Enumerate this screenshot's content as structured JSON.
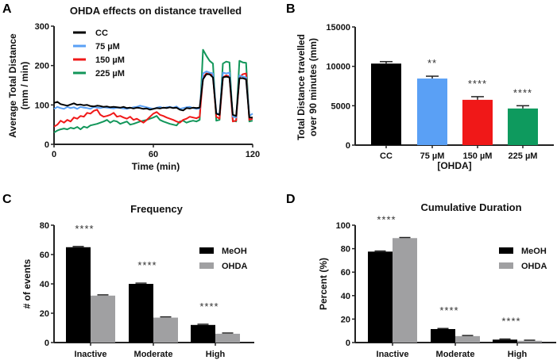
{
  "chart_data": [
    {
      "panel": "A",
      "type": "line",
      "title": "OHDA effects on distance travelled",
      "xlabel": "Time (min)",
      "ylabel": [
        "Average Total Distance",
        "(mm / min)"
      ],
      "xlim": [
        0,
        120
      ],
      "ylim": [
        0,
        300
      ],
      "xticks": [
        0,
        60,
        120
      ],
      "yticks": [
        0,
        100,
        200,
        300
      ],
      "legend_position": "top-left",
      "x": [
        0,
        2,
        4,
        6,
        8,
        10,
        12,
        14,
        16,
        18,
        20,
        22,
        24,
        26,
        28,
        30,
        32,
        34,
        36,
        38,
        40,
        42,
        44,
        46,
        48,
        50,
        52,
        54,
        56,
        58,
        60,
        62,
        64,
        66,
        68,
        70,
        72,
        74,
        76,
        78,
        80,
        82,
        84,
        86,
        88,
        90,
        92,
        94,
        96,
        98,
        100,
        102,
        104,
        106,
        108,
        110,
        112,
        114,
        116,
        118,
        120
      ],
      "series": [
        {
          "name": "CC",
          "color": "#000000",
          "values": [
            105,
            108,
            102,
            100,
            98,
            101,
            104,
            100,
            101,
            99,
            100,
            97,
            96,
            98,
            97,
            95,
            96,
            94,
            95,
            94,
            93,
            95,
            92,
            93,
            91,
            93,
            92,
            90,
            91,
            88,
            90,
            92,
            91,
            93,
            92,
            94,
            92,
            93,
            88,
            86,
            92,
            91,
            93,
            92,
            93,
            165,
            178,
            178,
            170,
            78,
            75,
            170,
            172,
            170,
            75,
            72,
            168,
            168,
            165,
            68,
            68
          ]
        },
        {
          "name": "75 µM",
          "color": "#5aa0f5",
          "values": [
            90,
            95,
            92,
            90,
            95,
            92,
            94,
            90,
            95,
            93,
            92,
            90,
            95,
            93,
            92,
            94,
            93,
            92,
            91,
            93,
            92,
            91,
            90,
            92,
            94,
            95,
            98,
            96,
            94,
            92,
            90,
            93,
            95,
            92,
            94,
            95,
            93,
            96,
            90,
            92,
            94,
            95,
            92,
            90,
            91,
            180,
            185,
            182,
            180,
            80,
            76,
            182,
            180,
            182,
            70,
            68,
            175,
            172,
            170,
            72,
            78
          ]
        },
        {
          "name": "150 µM",
          "color": "#f01818",
          "values": [
            45,
            50,
            60,
            55,
            62,
            58,
            68,
            65,
            72,
            70,
            80,
            78,
            85,
            88,
            75,
            70,
            72,
            75,
            80,
            70,
            72,
            68,
            65,
            70,
            62,
            65,
            60,
            55,
            62,
            70,
            78,
            82,
            75,
            72,
            68,
            65,
            62,
            58,
            55,
            62,
            65,
            70,
            68,
            66,
            70,
            170,
            180,
            178,
            175,
            70,
            65,
            170,
            175,
            172,
            58,
            60,
            170,
            178,
            180,
            62,
            65
          ]
        },
        {
          "name": "225 µM",
          "color": "#12965a",
          "values": [
            30,
            35,
            38,
            40,
            38,
            42,
            40,
            44,
            38,
            45,
            42,
            48,
            50,
            52,
            55,
            58,
            62,
            55,
            60,
            58,
            52,
            55,
            58,
            50,
            52,
            55,
            58,
            60,
            62,
            65,
            68,
            72,
            62,
            58,
            55,
            52,
            50,
            48,
            58,
            60,
            55,
            58,
            60,
            58,
            62,
            240,
            225,
            212,
            205,
            60,
            62,
            205,
            210,
            208,
            60,
            58,
            212,
            208,
            207,
            58,
            60
          ]
        }
      ]
    },
    {
      "panel": "B",
      "type": "bar",
      "title": "",
      "xlabel": "[OHDA]",
      "ylabel": [
        "Total Distance travelled",
        "over 90  minutes (mm)"
      ],
      "ylim": [
        0,
        15000
      ],
      "yticks": [
        0,
        5000,
        10000,
        15000
      ],
      "categories": [
        "CC",
        "75 µM",
        "150 µM",
        "225 µM"
      ],
      "values": [
        10350,
        8450,
        5750,
        4650
      ],
      "errors": [
        250,
        300,
        400,
        350
      ],
      "colors": [
        "#000000",
        "#5aa0f5",
        "#f01818",
        "#0e9a5e"
      ],
      "annotations": [
        "",
        "**",
        "****",
        "****"
      ]
    },
    {
      "panel": "C",
      "type": "bar",
      "title": "Frequency",
      "xlabel": "",
      "ylabel": [
        "# of events"
      ],
      "ylim": [
        0,
        80
      ],
      "yticks": [
        0,
        20,
        40,
        60,
        80
      ],
      "categories": [
        "Inactive",
        "Moderate",
        "High"
      ],
      "legend_position": "right",
      "series": [
        {
          "name": "MeOH",
          "color": "#000000",
          "values": [
            65,
            40,
            12
          ],
          "errors": [
            0.5,
            0.5,
            0.5
          ]
        },
        {
          "name": "OHDA",
          "color": "#a0a0a2",
          "values": [
            32,
            17,
            6
          ],
          "errors": [
            0.5,
            0.5,
            0.5
          ]
        }
      ],
      "annotations": [
        "****",
        "****",
        "****"
      ]
    },
    {
      "panel": "D",
      "type": "bar",
      "title": "Cumulative Duration",
      "xlabel": "",
      "ylabel": [
        "Percent (%)"
      ],
      "ylim": [
        0,
        100
      ],
      "yticks": [
        0,
        20,
        40,
        60,
        80,
        100
      ],
      "categories": [
        "Inactive",
        "Moderate",
        "High"
      ],
      "legend_position": "right",
      "series": [
        {
          "name": "MeOH",
          "color": "#000000",
          "values": [
            77.5,
            11.5,
            2.5
          ],
          "errors": [
            0.5,
            0.5,
            0.5
          ]
        },
        {
          "name": "OHDA",
          "color": "#a0a0a2",
          "values": [
            89,
            5.5,
            1.5
          ],
          "errors": [
            0.5,
            0.5,
            0.5
          ]
        }
      ],
      "annotations": [
        "****",
        "****",
        "****"
      ]
    }
  ]
}
